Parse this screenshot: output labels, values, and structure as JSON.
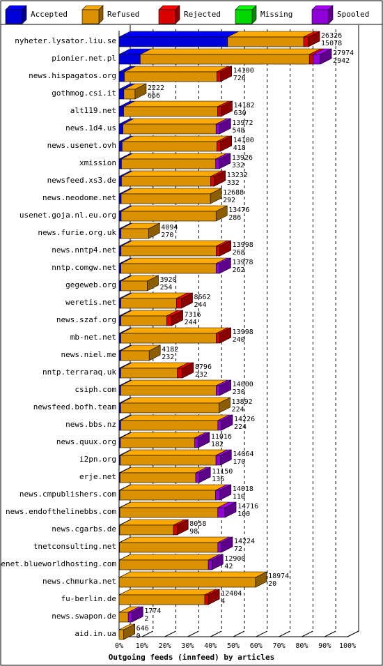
{
  "chart_data": {
    "type": "bar",
    "orientation": "horizontal",
    "stacked": true,
    "style": "3d",
    "xlabel": "Outgoing feeds (innfeed) by articles",
    "ylabel": "",
    "x_ticks": [
      "0%",
      "10%",
      "20%",
      "30%",
      "40%",
      "50%",
      "60%",
      "70%",
      "80%",
      "90%",
      "100%"
    ],
    "grid": true,
    "legend_position": "top",
    "series": [
      {
        "name": "Accepted",
        "color": "#0000ff"
      },
      {
        "name": "Refused",
        "color": "#ffaa00"
      },
      {
        "name": "Rejected",
        "color": "#ff0000"
      },
      {
        "name": "Missing",
        "color": "#00ff00"
      },
      {
        "name": "Spooled",
        "color": "#aa00ff"
      }
    ],
    "categories": [
      "nyheter.lysator.liu.se",
      "pionier.net.pl",
      "news.hispagatos.org",
      "gothmog.csi.it",
      "alt119.net",
      "news.1d4.us",
      "news.usenet.ovh",
      "xmission",
      "newsfeed.xs3.de",
      "news.neodome.net",
      "usenet.goja.nl.eu.org",
      "news.furie.org.uk",
      "news.nntp4.net",
      "nntp.comgw.net",
      "gegeweb.org",
      "weretis.net",
      "news.szaf.org",
      "mb-net.net",
      "news.niel.me",
      "nntp.terraraq.uk",
      "csiph.com",
      "newsfeed.bofh.team",
      "news.bbs.nz",
      "news.quux.org",
      "i2pn.org",
      "erje.net",
      "news.cmpublishers.com",
      "news.endofthelinebbs.com",
      "news.cgarbs.de",
      "tnetconsulting.net",
      "usenet.blueworldhosting.com",
      "news.chmurka.net",
      "fu-berlin.de",
      "news.swapon.de",
      "aid.in.ua"
    ],
    "rows": [
      {
        "total": "26326",
        "accepted": "15078",
        "segments": [
          15078,
          10576,
          672,
          0,
          0
        ]
      },
      {
        "total": "27974",
        "accepted": "2942",
        "segments": [
          2942,
          23500,
          532,
          0,
          1000
        ]
      },
      {
        "total": "14100",
        "accepted": "726",
        "segments": [
          726,
          12874,
          500,
          0,
          0
        ]
      },
      {
        "total": "2222",
        "accepted": "666",
        "segments": [
          666,
          1556,
          0,
          0,
          0
        ]
      },
      {
        "total": "14182",
        "accepted": "630",
        "segments": [
          630,
          13052,
          500,
          0,
          0
        ]
      },
      {
        "total": "13972",
        "accepted": "548",
        "segments": [
          548,
          12924,
          0,
          0,
          500
        ]
      },
      {
        "total": "14100",
        "accepted": "418",
        "segments": [
          418,
          13182,
          500,
          0,
          0
        ]
      },
      {
        "total": "13926",
        "accepted": "332",
        "segments": [
          332,
          13094,
          0,
          0,
          500
        ]
      },
      {
        "total": "13232",
        "accepted": "332",
        "segments": [
          332,
          12400,
          500,
          0,
          0
        ]
      },
      {
        "total": "12688",
        "accepted": "292",
        "segments": [
          292,
          12396,
          0,
          0,
          0
        ]
      },
      {
        "total": "13476",
        "accepted": "286",
        "segments": [
          286,
          13190,
          0,
          0,
          0
        ]
      },
      {
        "total": "4094",
        "accepted": "270",
        "segments": [
          270,
          3824,
          0,
          0,
          0
        ]
      },
      {
        "total": "13998",
        "accepted": "268",
        "segments": [
          268,
          13230,
          500,
          0,
          0
        ]
      },
      {
        "total": "13978",
        "accepted": "262",
        "segments": [
          262,
          13216,
          0,
          0,
          500
        ]
      },
      {
        "total": "3920",
        "accepted": "254",
        "segments": [
          254,
          3666,
          0,
          0,
          0
        ]
      },
      {
        "total": "8662",
        "accepted": "244",
        "segments": [
          244,
          7718,
          700,
          0,
          0
        ]
      },
      {
        "total": "7316",
        "accepted": "244",
        "segments": [
          244,
          6372,
          700,
          0,
          0
        ]
      },
      {
        "total": "13998",
        "accepted": "240",
        "segments": [
          240,
          13258,
          500,
          0,
          0
        ]
      },
      {
        "total": "4182",
        "accepted": "232",
        "segments": [
          232,
          3950,
          0,
          0,
          0
        ]
      },
      {
        "total": "8796",
        "accepted": "232",
        "segments": [
          232,
          7864,
          700,
          0,
          0
        ]
      },
      {
        "total": "14000",
        "accepted": "230",
        "segments": [
          230,
          13270,
          0,
          0,
          500
        ]
      },
      {
        "total": "13892",
        "accepted": "224",
        "segments": [
          224,
          13668,
          0,
          0,
          0
        ]
      },
      {
        "total": "14226",
        "accepted": "224",
        "segments": [
          224,
          13502,
          0,
          0,
          500
        ]
      },
      {
        "total": "11016",
        "accepted": "182",
        "segments": [
          182,
          10334,
          0,
          0,
          500
        ]
      },
      {
        "total": "14064",
        "accepted": "170",
        "segments": [
          170,
          13294,
          0,
          0,
          600
        ]
      },
      {
        "total": "11150",
        "accepted": "136",
        "segments": [
          136,
          10514,
          0,
          0,
          500
        ]
      },
      {
        "total": "14018",
        "accepted": "110",
        "segments": [
          110,
          13308,
          0,
          0,
          600
        ]
      },
      {
        "total": "14716",
        "accepted": "100",
        "segments": [
          100,
          13616,
          0,
          0,
          1000
        ]
      },
      {
        "total": "8058",
        "accepted": "98",
        "segments": [
          98,
          7460,
          500,
          0,
          0
        ]
      },
      {
        "total": "14224",
        "accepted": "72",
        "segments": [
          72,
          13652,
          0,
          0,
          500
        ]
      },
      {
        "total": "12900",
        "accepted": "42",
        "segments": [
          42,
          12358,
          0,
          0,
          500
        ]
      },
      {
        "total": "18974",
        "accepted": "20",
        "segments": [
          20,
          18954,
          0,
          0,
          0
        ]
      },
      {
        "total": "12404",
        "accepted": "4",
        "segments": [
          4,
          11900,
          500,
          0,
          0
        ]
      },
      {
        "total": "1774",
        "accepted": "2",
        "segments": [
          2,
          1272,
          0,
          0,
          500
        ]
      },
      {
        "total": "646",
        "accepted": "0",
        "segments": [
          0,
          646,
          0,
          0,
          0
        ]
      }
    ],
    "max_total": 30000
  }
}
